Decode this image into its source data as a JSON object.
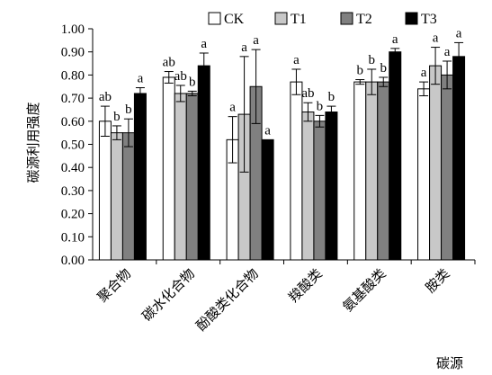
{
  "chart_data": {
    "type": "bar",
    "xlabel": "碳源",
    "ylabel": "碳源利用强度",
    "ylim": [
      0,
      1.0
    ],
    "yticks": [
      "0.00",
      "0.10",
      "0.20",
      "0.30",
      "0.40",
      "0.50",
      "0.60",
      "0.70",
      "0.80",
      "0.90",
      "1.00"
    ],
    "legend_position": "top",
    "categories": [
      "聚合物",
      "碳水化合物",
      "酚酸类化合物",
      "羧酸类",
      "氨基酸类",
      "胺类"
    ],
    "series": [
      {
        "name": "CK",
        "color": "#ffffff",
        "values": [
          0.6,
          0.79,
          0.52,
          0.77,
          0.77,
          0.74
        ],
        "errors": [
          0.065,
          0.025,
          0.1,
          0.055,
          0.01,
          0.03
        ],
        "letters": [
          "ab",
          "ab",
          "a",
          "a",
          "b",
          "a"
        ]
      },
      {
        "name": "T1",
        "color": "#c8c8c8",
        "values": [
          0.55,
          0.72,
          0.63,
          0.64,
          0.77,
          0.84
        ],
        "errors": [
          0.03,
          0.035,
          0.25,
          0.04,
          0.055,
          0.08
        ],
        "letters": [
          "b",
          "ab",
          "a",
          "ab",
          "b",
          "a"
        ]
      },
      {
        "name": "T2",
        "color": "#808080",
        "values": [
          0.55,
          0.72,
          0.75,
          0.6,
          0.77,
          0.8
        ],
        "errors": [
          0.06,
          0.01,
          0.16,
          0.025,
          0.02,
          0.06
        ],
        "letters": [
          "b",
          "b",
          "a",
          "b",
          "b",
          "a"
        ]
      },
      {
        "name": "T3",
        "color": "#000000",
        "values": [
          0.72,
          0.84,
          0.52,
          0.64,
          0.9,
          0.88
        ],
        "errors": [
          0.025,
          0.055,
          0.0,
          0.025,
          0.015,
          0.06
        ],
        "letters": [
          "a",
          "a",
          "a",
          "b",
          "a",
          "a"
        ]
      }
    ]
  }
}
